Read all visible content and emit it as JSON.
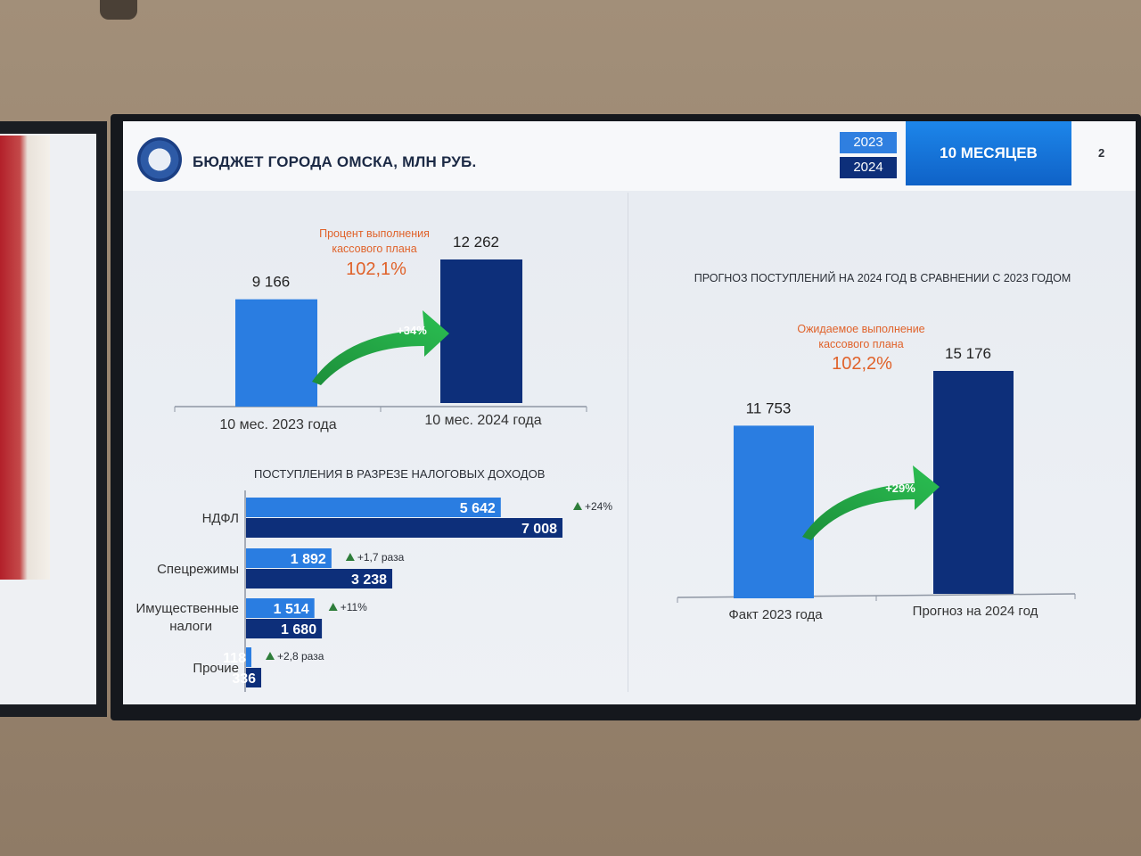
{
  "header": {
    "title": "БЮДЖЕТ ГОРОДА ОМСКА, МЛН РУБ.",
    "year_2023": "2023",
    "year_2024": "2024",
    "period": "10 МЕСЯЦЕВ",
    "page": "2"
  },
  "colors": {
    "y2023": "#2a7de1",
    "y2024": "#0d2f7a",
    "growth_arrow": "#1e9e3e",
    "accent_text": "#e0622a"
  },
  "chart_data": [
    {
      "type": "bar",
      "categories": [
        "10 мес. 2023 года",
        "10 мес. 2024 года"
      ],
      "values": [
        9166,
        12262
      ],
      "value_labels": [
        "9 166",
        "12 262"
      ],
      "annotation_label": "Процент выполнения кассового плана",
      "annotation_value": "102,1%",
      "growth": "+34%"
    },
    {
      "type": "bar",
      "orientation": "horizontal",
      "title": "ПОСТУПЛЕНИЯ В РАЗРЕЗЕ НАЛОГОВЫХ ДОХОДОВ",
      "categories": [
        "НДФЛ",
        "Спецрежимы",
        "Имущественные налоги",
        "Прочие"
      ],
      "series": [
        {
          "values": [
            5642,
            1892,
            1514,
            118
          ],
          "value_labels": [
            "5 642",
            "1 892",
            "1 514",
            "118"
          ]
        },
        {
          "values": [
            7008,
            3238,
            1680,
            336
          ],
          "value_labels": [
            "7 008",
            "3 238",
            "1 680",
            "336"
          ]
        }
      ],
      "growth": [
        "+24%",
        "+1,7 раза",
        "+11%",
        "+2,8 раза"
      ]
    },
    {
      "type": "bar",
      "title": "ПРОГНОЗ ПОСТУПЛЕНИЙ НА 2024 ГОД В СРАВНЕНИИ С 2023 ГОДОМ",
      "categories": [
        "Факт 2023 года",
        "Прогноз на 2024 год"
      ],
      "values": [
        11753,
        15176
      ],
      "value_labels": [
        "11 753",
        "15 176"
      ],
      "annotation_label": "Ожидаемое выполнение кассового плана",
      "annotation_value": "102,2%",
      "growth": "+29%"
    }
  ]
}
